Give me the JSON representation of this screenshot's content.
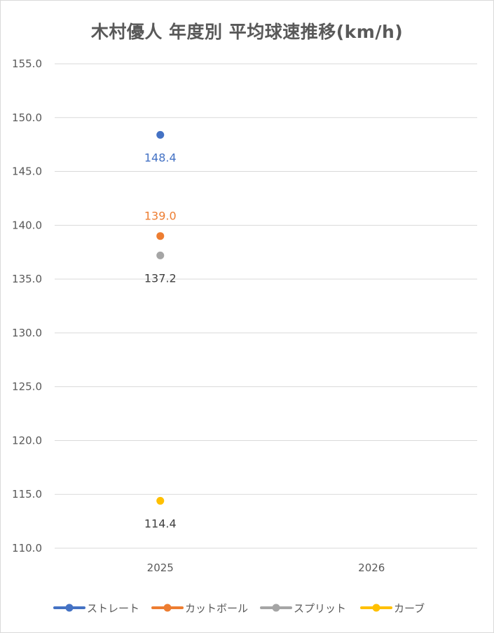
{
  "chart_data": {
    "type": "scatter",
    "title": "木村優人 年度別 平均球速推移(km/h)",
    "categories": [
      "2025",
      "2026"
    ],
    "ylim": [
      110,
      155
    ],
    "y_tick_labels": [
      "155.0",
      "150.0",
      "145.0",
      "140.0",
      "135.0",
      "130.0",
      "125.0",
      "120.0",
      "115.0",
      "110.0"
    ],
    "grid": true,
    "legend_position": "bottom",
    "series": [
      {
        "name": "ストレート",
        "color": "#4472C4",
        "values": [
          148.4,
          null
        ],
        "labels": [
          "148.4",
          ""
        ],
        "label_pos": "below"
      },
      {
        "name": "カットボール",
        "color": "#ED7D31",
        "values": [
          139.0,
          null
        ],
        "labels": [
          "139.0",
          ""
        ],
        "label_pos": "above"
      },
      {
        "name": "スプリット",
        "color": "#A5A5A5",
        "values": [
          137.2,
          null
        ],
        "labels": [
          "137.2",
          ""
        ],
        "label_pos": "below",
        "label_color": "#404040"
      },
      {
        "name": "カーブ",
        "color": "#FFC000",
        "values": [
          114.4,
          null
        ],
        "labels": [
          "114.4",
          ""
        ],
        "label_pos": "below",
        "label_color": "#404040"
      }
    ]
  }
}
